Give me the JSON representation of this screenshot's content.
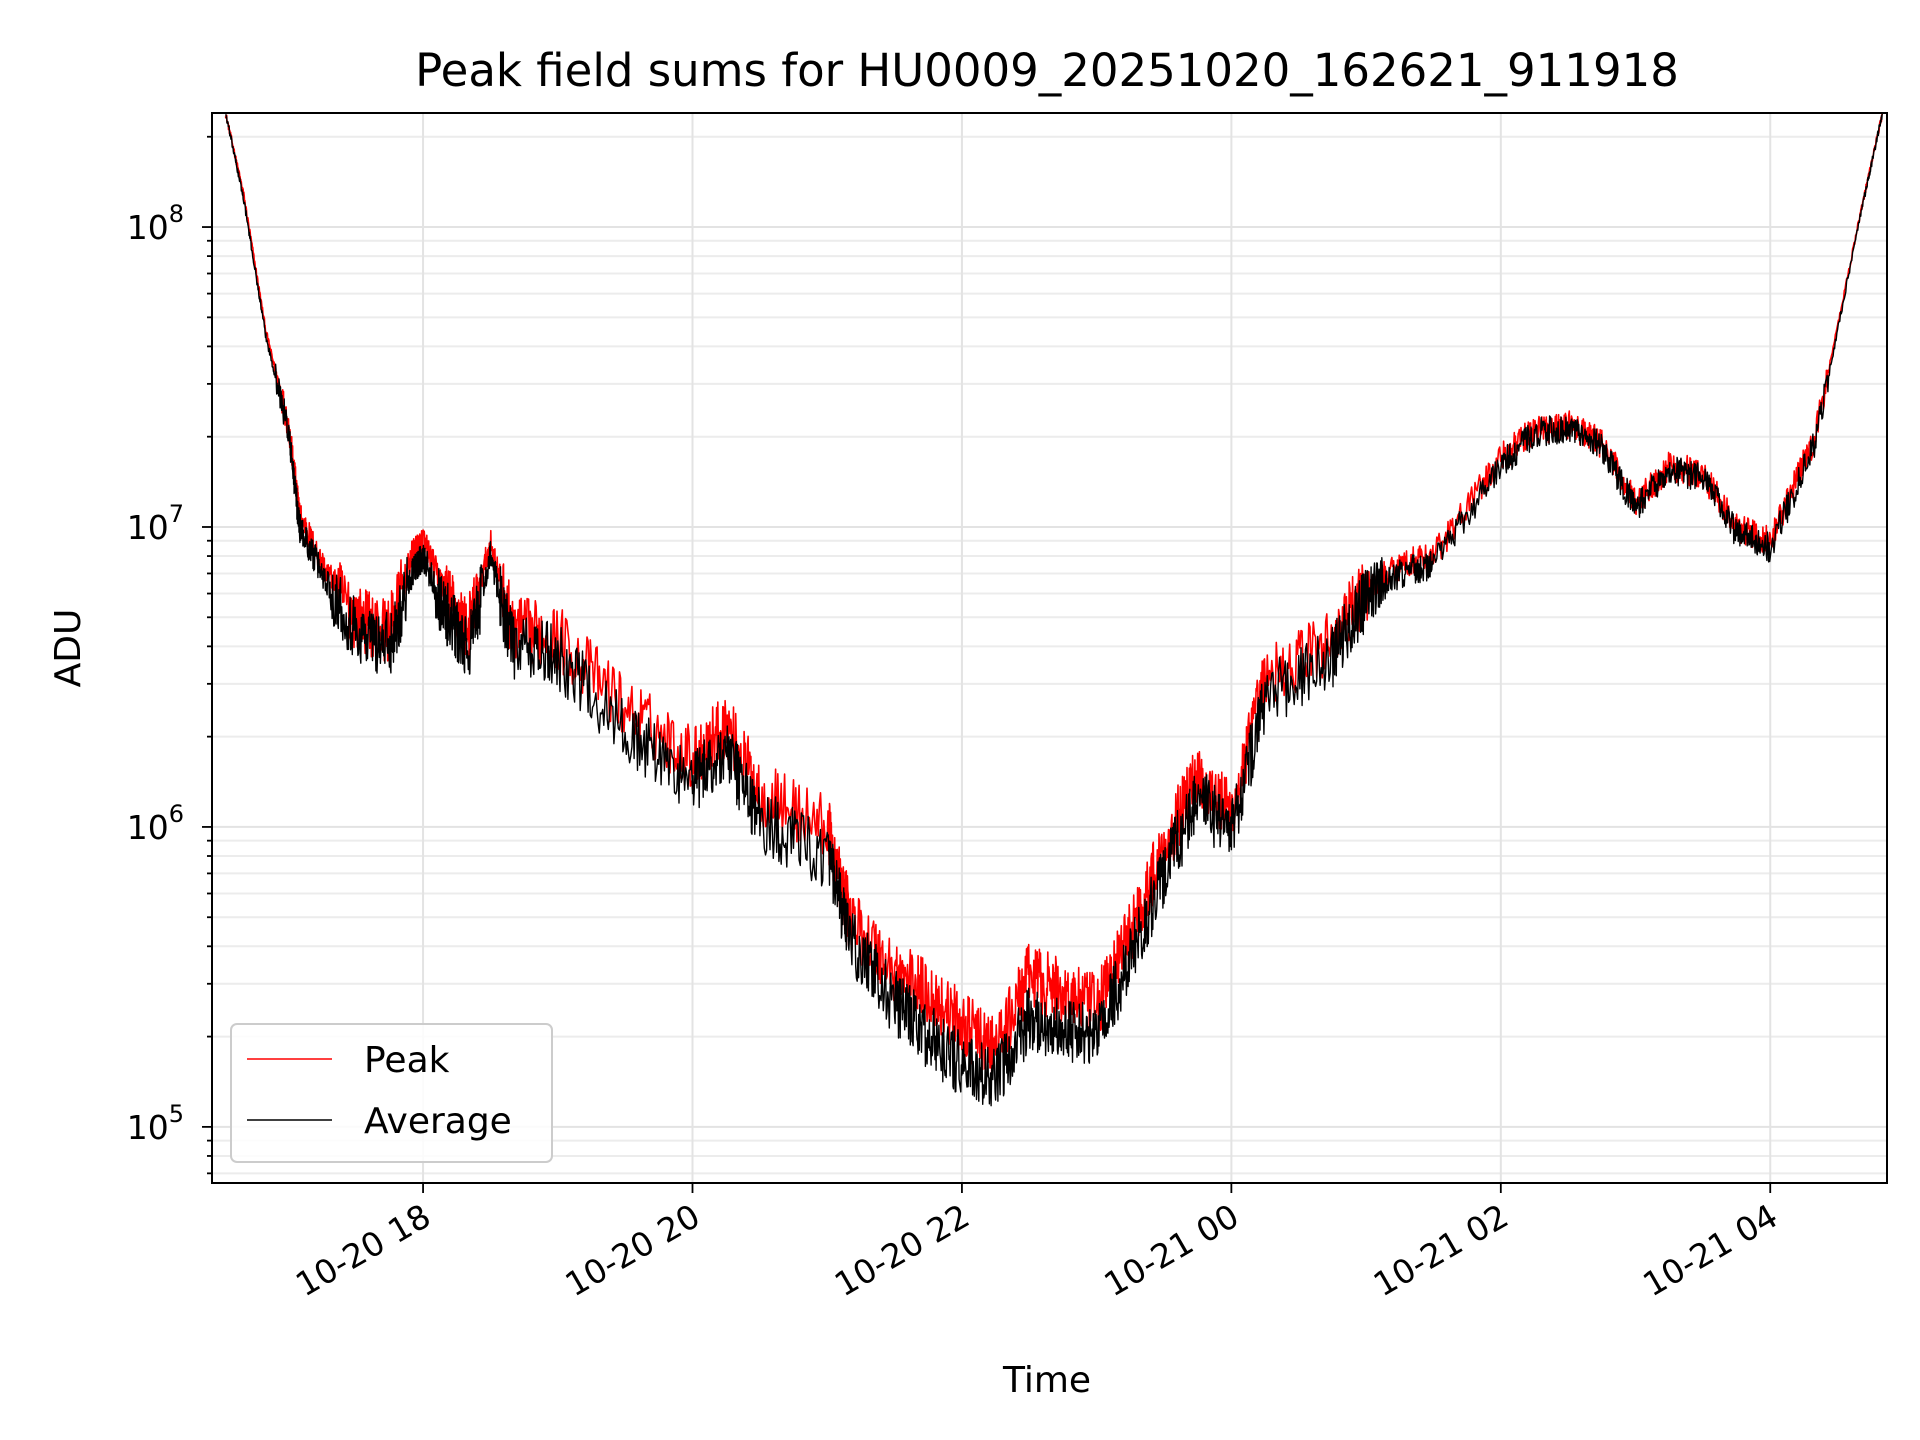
{
  "chart_data": {
    "type": "line",
    "title": "Peak field sums for HU0009_20251020_162621_911918",
    "xlabel": "Time",
    "ylabel": "ADU",
    "y_scale": "log",
    "xlim": [
      "2025-10-20 16:26",
      "2025-10-21 04:52"
    ],
    "ylim": [
      65000,
      240000000
    ],
    "x_tick_labels": [
      "10-20 18",
      "10-20 20",
      "10-20 22",
      "10-21 00",
      "10-21 02",
      "10-21 04"
    ],
    "x_ticks": [
      "2025-10-20 18:00",
      "2025-10-20 20:00",
      "2025-10-20 22:00",
      "2025-10-21 00:00",
      "2025-10-21 02:00",
      "2025-10-21 04:00"
    ],
    "y_ticks": [
      {
        "value": 100000,
        "base": "10",
        "exp": "5"
      },
      {
        "value": 1000000,
        "base": "10",
        "exp": "6"
      },
      {
        "value": 10000000,
        "base": "10",
        "exp": "7"
      },
      {
        "value": 100000000,
        "base": "10",
        "exp": "8"
      }
    ],
    "grid": true,
    "legend_position": "lower-left",
    "series": [
      {
        "name": "Peak",
        "color": "#ff0000",
        "x": [
          "2025-10-20 16:32",
          "2025-10-20 16:40",
          "2025-10-20 16:50",
          "2025-10-20 17:00",
          "2025-10-20 17:05",
          "2025-10-20 17:15",
          "2025-10-20 17:30",
          "2025-10-20 17:45",
          "2025-10-20 17:55",
          "2025-10-20 18:00",
          "2025-10-20 18:10",
          "2025-10-20 18:20",
          "2025-10-20 18:30",
          "2025-10-20 18:40",
          "2025-10-20 19:00",
          "2025-10-20 19:30",
          "2025-10-20 20:00",
          "2025-10-20 20:15",
          "2025-10-20 20:30",
          "2025-10-20 21:00",
          "2025-10-20 21:10",
          "2025-10-20 21:30",
          "2025-10-20 21:45",
          "2025-10-20 22:00",
          "2025-10-20 22:15",
          "2025-10-20 22:30",
          "2025-10-20 22:45",
          "2025-10-20 23:00",
          "2025-10-20 23:15",
          "2025-10-20 23:30",
          "2025-10-20 23:45",
          "2025-10-21 00:00",
          "2025-10-21 00:15",
          "2025-10-21 00:45",
          "2025-10-21 01:00",
          "2025-10-21 01:15",
          "2025-10-21 01:30",
          "2025-10-21 02:00",
          "2025-10-21 02:15",
          "2025-10-21 02:30",
          "2025-10-21 02:45",
          "2025-10-21 03:00",
          "2025-10-21 03:15",
          "2025-10-21 03:30",
          "2025-10-21 03:45",
          "2025-10-21 04:00",
          "2025-10-21 04:20",
          "2025-10-21 04:40",
          "2025-10-21 04:50"
        ],
        "y": [
          240000000,
          130000000,
          45000000,
          22000000,
          11000000,
          7500000,
          5000000,
          4500000,
          8000000,
          9000000,
          6000000,
          4500000,
          8800000,
          4600000,
          4300000,
          2500000,
          1700000,
          2200000,
          1300000,
          1000000,
          500000,
          330000,
          280000,
          220000,
          180000,
          320000,
          280000,
          250000,
          450000,
          850000,
          1500000,
          1100000,
          3100000,
          4200000,
          6200000,
          7500000,
          8000000,
          17000000,
          21000000,
          22000000,
          19000000,
          12000000,
          16000000,
          15000000,
          10000000,
          9000000,
          20000000,
          110000000,
          240000000
        ]
      },
      {
        "name": "Average",
        "color": "#000000",
        "x": [
          "2025-10-20 16:32",
          "2025-10-20 16:40",
          "2025-10-20 16:50",
          "2025-10-20 17:00",
          "2025-10-20 17:05",
          "2025-10-20 17:15",
          "2025-10-20 17:30",
          "2025-10-20 17:45",
          "2025-10-20 17:55",
          "2025-10-20 18:00",
          "2025-10-20 18:10",
          "2025-10-20 18:20",
          "2025-10-20 18:30",
          "2025-10-20 18:40",
          "2025-10-20 19:00",
          "2025-10-20 19:30",
          "2025-10-20 20:00",
          "2025-10-20 20:15",
          "2025-10-20 20:30",
          "2025-10-20 21:00",
          "2025-10-20 21:10",
          "2025-10-20 21:30",
          "2025-10-20 21:45",
          "2025-10-20 22:00",
          "2025-10-20 22:15",
          "2025-10-20 22:30",
          "2025-10-20 22:45",
          "2025-10-20 23:00",
          "2025-10-20 23:15",
          "2025-10-20 23:30",
          "2025-10-20 23:45",
          "2025-10-21 00:00",
          "2025-10-21 00:15",
          "2025-10-21 00:45",
          "2025-10-21 01:00",
          "2025-10-21 01:15",
          "2025-10-21 01:30",
          "2025-10-21 02:00",
          "2025-10-21 02:15",
          "2025-10-21 02:30",
          "2025-10-21 02:45",
          "2025-10-21 03:00",
          "2025-10-21 03:15",
          "2025-10-21 03:30",
          "2025-10-21 03:45",
          "2025-10-21 04:00",
          "2025-10-21 04:20",
          "2025-10-21 04:40",
          "2025-10-21 04:50"
        ],
        "y": [
          240000000,
          125000000,
          43000000,
          21000000,
          10000000,
          7000000,
          4500000,
          4000000,
          7000000,
          8000000,
          5200000,
          3800000,
          8000000,
          4000000,
          3700000,
          2100000,
          1400000,
          1800000,
          1050000,
          800000,
          420000,
          260000,
          200000,
          160000,
          140000,
          230000,
          210000,
          200000,
          360000,
          700000,
          1250000,
          950000,
          2700000,
          3700000,
          5700000,
          7000000,
          7500000,
          16000000,
          20500000,
          21500000,
          18500000,
          11500000,
          15500000,
          14500000,
          9500000,
          8500000,
          19000000,
          108000000,
          240000000
        ]
      }
    ]
  }
}
